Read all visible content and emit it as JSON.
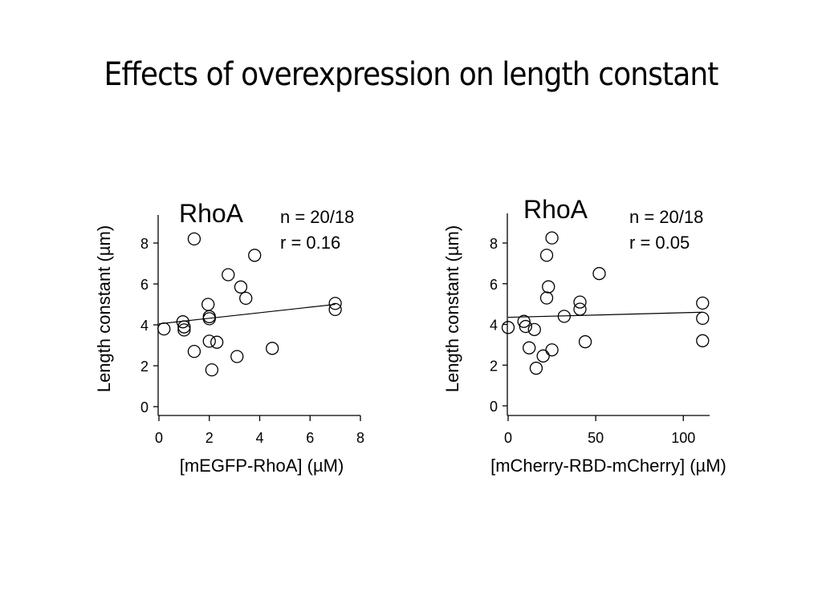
{
  "title": "Effects of overexpression on length constant",
  "chart_data": [
    {
      "type": "scatter",
      "title": "RhoA",
      "xlabel": "[mEGFP-RhoA] (µM)",
      "ylabel": "Length constant (µm)",
      "xlim": [
        0,
        8
      ],
      "ylim": [
        0,
        9
      ],
      "xticks": [
        0,
        2,
        4,
        6,
        8
      ],
      "yticks": [
        0,
        2,
        4,
        6,
        8
      ],
      "annotations": [
        "n = 20/18",
        "r = 0.16"
      ],
      "points": [
        {
          "x": 0.2,
          "y": 3.8
        },
        {
          "x": 0.95,
          "y": 4.15
        },
        {
          "x": 1.0,
          "y": 3.9
        },
        {
          "x": 1.0,
          "y": 3.75
        },
        {
          "x": 1.4,
          "y": 8.2
        },
        {
          "x": 1.4,
          "y": 2.7
        },
        {
          "x": 1.95,
          "y": 5.0
        },
        {
          "x": 2.0,
          "y": 4.4
        },
        {
          "x": 2.0,
          "y": 4.3
        },
        {
          "x": 2.0,
          "y": 3.2
        },
        {
          "x": 2.1,
          "y": 1.8
        },
        {
          "x": 2.3,
          "y": 3.15
        },
        {
          "x": 2.75,
          "y": 6.45
        },
        {
          "x": 3.1,
          "y": 2.45
        },
        {
          "x": 3.25,
          "y": 5.85
        },
        {
          "x": 3.45,
          "y": 5.3
        },
        {
          "x": 3.8,
          "y": 7.4
        },
        {
          "x": 4.5,
          "y": 2.85
        },
        {
          "x": 7.0,
          "y": 5.05
        },
        {
          "x": 7.0,
          "y": 4.75
        }
      ],
      "fit_line": {
        "x": [
          0,
          7
        ],
        "y": [
          4.05,
          5.0
        ]
      }
    },
    {
      "type": "scatter",
      "title": "RhoA",
      "xlabel": "[mCherry-RBD-mCherry] (µM)",
      "ylabel": "Length constant (µm)",
      "xlim": [
        0,
        115
      ],
      "ylim": [
        0,
        9
      ],
      "xticks": [
        0,
        50,
        100
      ],
      "yticks": [
        0,
        2,
        4,
        6,
        8
      ],
      "annotations": [
        "n = 20/18",
        "r = 0.05"
      ],
      "points": [
        {
          "x": 0,
          "y": 3.85
        },
        {
          "x": 9,
          "y": 4.15
        },
        {
          "x": 10,
          "y": 3.9
        },
        {
          "x": 12,
          "y": 2.85
        },
        {
          "x": 15,
          "y": 3.75
        },
        {
          "x": 16,
          "y": 1.85
        },
        {
          "x": 20,
          "y": 2.45
        },
        {
          "x": 22,
          "y": 7.4
        },
        {
          "x": 22,
          "y": 5.3
        },
        {
          "x": 23,
          "y": 5.85
        },
        {
          "x": 25,
          "y": 8.25
        },
        {
          "x": 25,
          "y": 2.75
        },
        {
          "x": 32,
          "y": 4.4
        },
        {
          "x": 41,
          "y": 5.1
        },
        {
          "x": 41,
          "y": 4.75
        },
        {
          "x": 44,
          "y": 3.15
        },
        {
          "x": 52,
          "y": 6.5
        },
        {
          "x": 111,
          "y": 5.05
        },
        {
          "x": 111,
          "y": 4.3
        },
        {
          "x": 111,
          "y": 3.2
        }
      ],
      "fit_line": {
        "x": [
          0,
          111
        ],
        "y": [
          4.35,
          4.6
        ]
      }
    }
  ]
}
